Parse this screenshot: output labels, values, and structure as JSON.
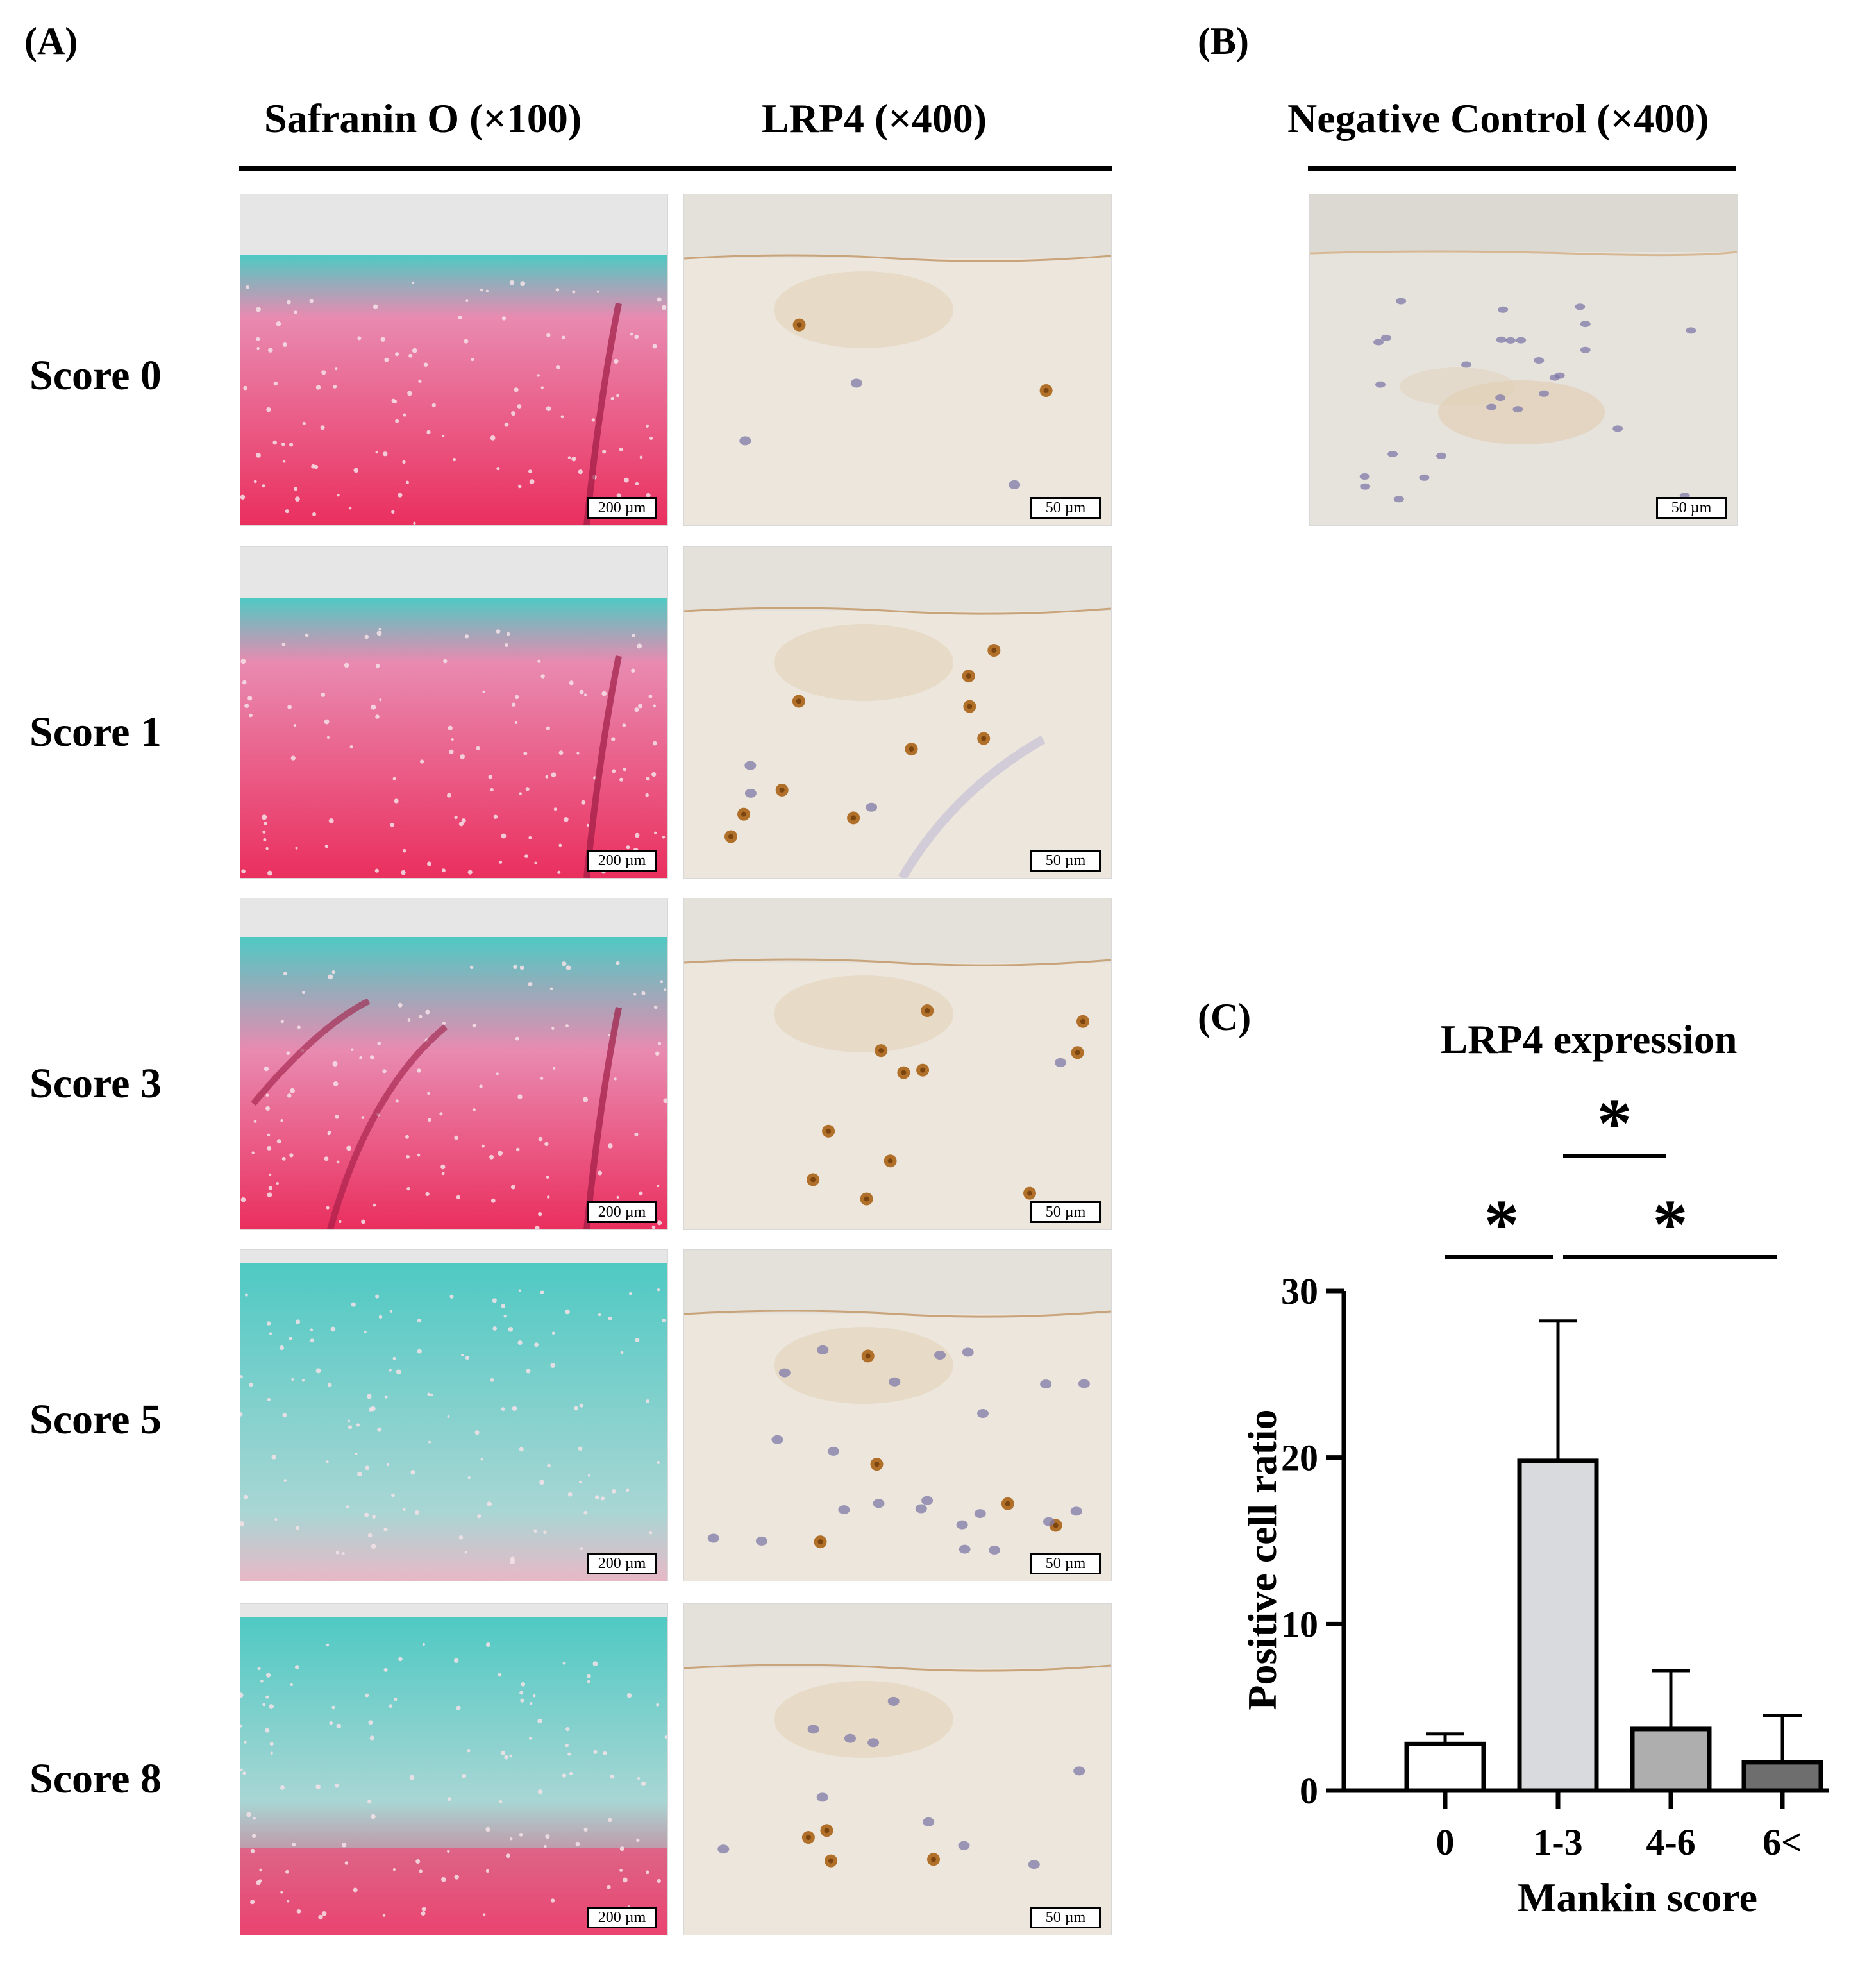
{
  "panel_a": {
    "letter": "(A)",
    "col_headers": [
      "Safranin O (×100)",
      "LRP4 (×400)"
    ],
    "rows": [
      {
        "label": "Score 0",
        "saf_scale": "200 µm",
        "lrp_scale": "50 µm"
      },
      {
        "label": "Score 1",
        "saf_scale": "200 µm",
        "lrp_scale": "50 µm"
      },
      {
        "label": "Score 3",
        "saf_scale": "200 µm",
        "lrp_scale": "50 µm"
      },
      {
        "label": "Score 5",
        "saf_scale": "200 µm",
        "lrp_scale": "50 µm"
      },
      {
        "label": "Score 8",
        "saf_scale": "200 µm",
        "lrp_scale": "50 µm"
      }
    ]
  },
  "panel_b": {
    "letter": "(B)",
    "header": "Negative Control (×400)",
    "scale": "50 µm"
  },
  "panel_c": {
    "letter": "(C)"
  },
  "colors": {
    "safranin_red": "#ea2f5e",
    "fast_green": "#4fc9c3",
    "lrp_background": "#ece6dc",
    "dab_brown": "#b0702a",
    "hematoxylin": "#7f7aa8"
  },
  "chart_data": {
    "type": "bar",
    "title": "LRP4 expression",
    "xlabel": "Mankin score",
    "ylabel": "Positive cell ratio",
    "categories": [
      "0",
      "1-3",
      "4-6",
      "6<"
    ],
    "values": [
      2.8,
      19.8,
      3.7,
      1.7
    ],
    "error_upper": [
      3.4,
      28.2,
      7.2,
      4.5
    ],
    "bar_colors": [
      "#ffffff",
      "#d9dadd",
      "#aeaeae",
      "#6e6e6e"
    ],
    "ylim": [
      0,
      30
    ],
    "yticks": [
      0,
      10,
      20,
      30
    ],
    "significance": [
      {
        "from": "0",
        "to": "1-3",
        "label": "*"
      },
      {
        "from": "1-3",
        "to": "4-6",
        "label": "*"
      },
      {
        "from": "1-3",
        "to": "6<",
        "label": "*"
      }
    ],
    "grid": false
  }
}
